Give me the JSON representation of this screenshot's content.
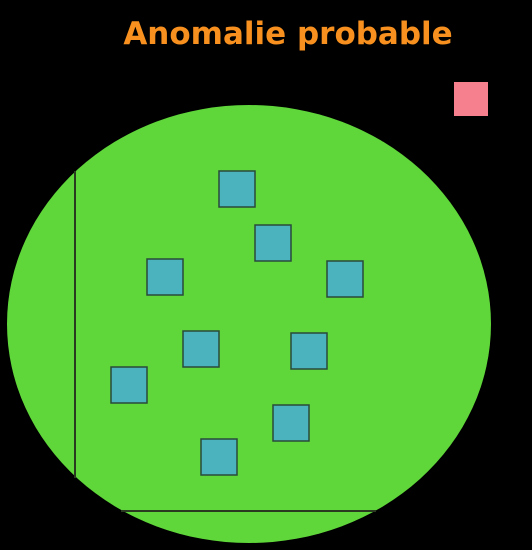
{
  "title": "Anomalie probable",
  "colors": {
    "background": "#000000",
    "title": "#f7901e",
    "cluster": "#5fd63a",
    "axis": "#2a3a20",
    "normal_point": "#4ab3bd",
    "normal_point_border": "#2a4a3a",
    "anomaly_point": "#f7808e"
  },
  "normal_points_count": 9,
  "anomaly_points_count": 1
}
